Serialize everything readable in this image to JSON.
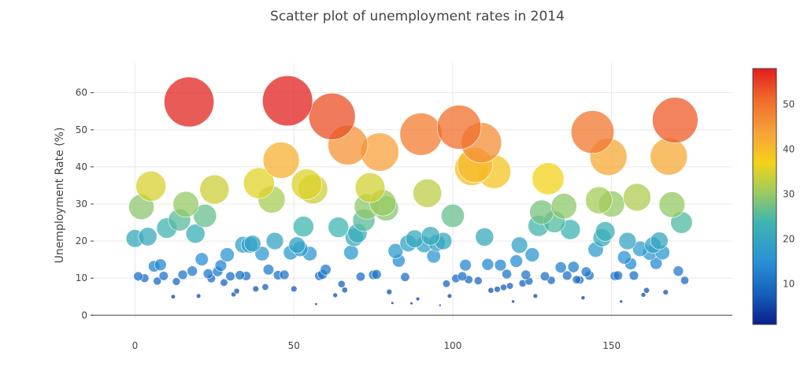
{
  "chart_data": {
    "type": "scatter",
    "title": "Scatter plot of unemployment rates in 2014",
    "xlabel": "",
    "ylabel": "Unemployment Rate (%)",
    "xlim": [
      -14,
      188
    ],
    "ylim": [
      -1,
      68
    ],
    "x_ticks": [
      0,
      50,
      100,
      150
    ],
    "y_ticks": [
      0,
      10,
      20,
      30,
      40,
      50,
      60
    ],
    "grid": true,
    "colorscale": "Jet",
    "colorbar": {
      "range": [
        1,
        58
      ],
      "ticks": [
        10,
        20,
        30,
        40,
        50
      ]
    },
    "marker_size_encodes": "y",
    "marker_color_encodes": "y",
    "points": [
      [
        0,
        20.7
      ],
      [
        1,
        10.5
      ],
      [
        2,
        29.2
      ],
      [
        3,
        10.0
      ],
      [
        4,
        21.2
      ],
      [
        5,
        34.8
      ],
      [
        6,
        13.2
      ],
      [
        7,
        9.2
      ],
      [
        8,
        13.6
      ],
      [
        9,
        10.6
      ],
      [
        10,
        23.5
      ],
      [
        12,
        5.0
      ],
      [
        13,
        9.1
      ],
      [
        14,
        25.7
      ],
      [
        15,
        10.9
      ],
      [
        16,
        29.9
      ],
      [
        17,
        57.5
      ],
      [
        18,
        11.9
      ],
      [
        19,
        22.0
      ],
      [
        20,
        5.2
      ],
      [
        21,
        15.1
      ],
      [
        22,
        26.8
      ],
      [
        23,
        11.2
      ],
      [
        24,
        9.9
      ],
      [
        25,
        33.9
      ],
      [
        26,
        11.8
      ],
      [
        27,
        13.4
      ],
      [
        28,
        8.8
      ],
      [
        29,
        16.3
      ],
      [
        30,
        10.5
      ],
      [
        31,
        5.6
      ],
      [
        32,
        6.5
      ],
      [
        33,
        10.8
      ],
      [
        34,
        19.0
      ],
      [
        35,
        10.6
      ],
      [
        36,
        19.0
      ],
      [
        37,
        19.3
      ],
      [
        38,
        7.1
      ],
      [
        39,
        35.6
      ],
      [
        40,
        16.6
      ],
      [
        41,
        7.6
      ],
      [
        42,
        12.3
      ],
      [
        43,
        31.2
      ],
      [
        44,
        20.0
      ],
      [
        45,
        10.8
      ],
      [
        46,
        41.8
      ],
      [
        47,
        10.9
      ],
      [
        48,
        57.8
      ],
      [
        49,
        16.9
      ],
      [
        50,
        7.1
      ],
      [
        51,
        18.9
      ],
      [
        52,
        17.9
      ],
      [
        53,
        23.9
      ],
      [
        54,
        35.3
      ],
      [
        55,
        16.6
      ],
      [
        56,
        34.0
      ],
      [
        57,
        3.0
      ],
      [
        58,
        10.6
      ],
      [
        59,
        11.0
      ],
      [
        60,
        12.3
      ],
      [
        62,
        53.6
      ],
      [
        63,
        5.4
      ],
      [
        64,
        23.7
      ],
      [
        65,
        8.4
      ],
      [
        66,
        6.8
      ],
      [
        67,
        45.9
      ],
      [
        68,
        16.9
      ],
      [
        69,
        21.0
      ],
      [
        70,
        22.1
      ],
      [
        71,
        10.4
      ],
      [
        72,
        25.6
      ],
      [
        73,
        29.3
      ],
      [
        74,
        34.4
      ],
      [
        75,
        10.9
      ],
      [
        76,
        11.0
      ],
      [
        77,
        44.0
      ],
      [
        78,
        30.3
      ],
      [
        79,
        28.8
      ],
      [
        80,
        6.3
      ],
      [
        81,
        3.3
      ],
      [
        82,
        17.3
      ],
      [
        83,
        14.7
      ],
      [
        85,
        10.3
      ],
      [
        86,
        19.4
      ],
      [
        87,
        3.2
      ],
      [
        88,
        20.6
      ],
      [
        89,
        4.4
      ],
      [
        90,
        48.8
      ],
      [
        91,
        19.1
      ],
      [
        92,
        32.9
      ],
      [
        93,
        21.4
      ],
      [
        94,
        15.9
      ],
      [
        95,
        19.5
      ],
      [
        96,
        2.7
      ],
      [
        97,
        20.0
      ],
      [
        98,
        8.5
      ],
      [
        99,
        5.2
      ],
      [
        100,
        26.8
      ],
      [
        101,
        9.9
      ],
      [
        102,
        50.7
      ],
      [
        103,
        10.5
      ],
      [
        104,
        13.5
      ],
      [
        105,
        9.6
      ],
      [
        106,
        39.6
      ],
      [
        107,
        40.5
      ],
      [
        108,
        9.3
      ],
      [
        109,
        46.5
      ],
      [
        110,
        21.1
      ],
      [
        111,
        13.7
      ],
      [
        112,
        6.7
      ],
      [
        113,
        38.7
      ],
      [
        114,
        7.0
      ],
      [
        115,
        13.5
      ],
      [
        116,
        7.5
      ],
      [
        117,
        11.1
      ],
      [
        118,
        7.9
      ],
      [
        119,
        3.7
      ],
      [
        120,
        14.6
      ],
      [
        121,
        18.9
      ],
      [
        122,
        8.6
      ],
      [
        123,
        10.9
      ],
      [
        124,
        9.2
      ],
      [
        125,
        16.3
      ],
      [
        126,
        5.2
      ],
      [
        127,
        24.1
      ],
      [
        128,
        27.8
      ],
      [
        129,
        10.5
      ],
      [
        130,
        36.8
      ],
      [
        131,
        9.4
      ],
      [
        132,
        25.2
      ],
      [
        134,
        12.9
      ],
      [
        135,
        29.4
      ],
      [
        136,
        10.7
      ],
      [
        137,
        23.1
      ],
      [
        138,
        13.0
      ],
      [
        139,
        9.6
      ],
      [
        140,
        9.5
      ],
      [
        141,
        4.7
      ],
      [
        142,
        11.7
      ],
      [
        143,
        10.7
      ],
      [
        144,
        49.4
      ],
      [
        145,
        17.7
      ],
      [
        146,
        31.0
      ],
      [
        147,
        20.9
      ],
      [
        148,
        22.6
      ],
      [
        149,
        42.7
      ],
      [
        150,
        30.0
      ],
      [
        151,
        10.6
      ],
      [
        152,
        10.7
      ],
      [
        153,
        3.7
      ],
      [
        154,
        15.6
      ],
      [
        155,
        20.0
      ],
      [
        156,
        13.9
      ],
      [
        157,
        10.7
      ],
      [
        158,
        31.8
      ],
      [
        159,
        17.9
      ],
      [
        160,
        5.5
      ],
      [
        161,
        6.7
      ],
      [
        162,
        16.8
      ],
      [
        163,
        18.9
      ],
      [
        164,
        14.0
      ],
      [
        165,
        20.1
      ],
      [
        166,
        16.9
      ],
      [
        167,
        6.2
      ],
      [
        168,
        42.8
      ],
      [
        169,
        29.8
      ],
      [
        170,
        52.6
      ],
      [
        171,
        11.9
      ],
      [
        172,
        25.0
      ],
      [
        173,
        9.4
      ]
    ]
  }
}
